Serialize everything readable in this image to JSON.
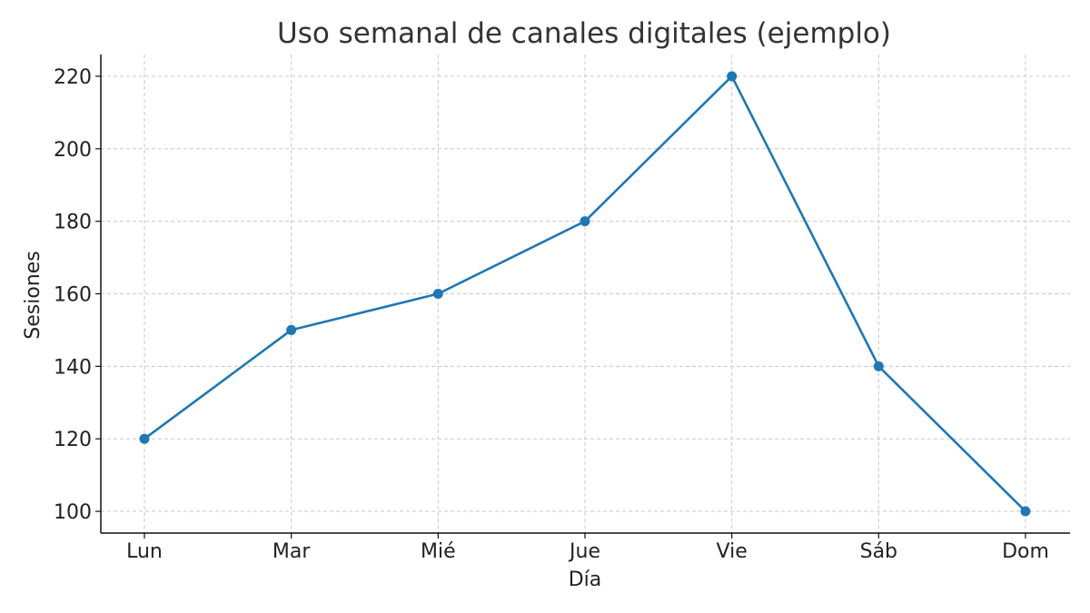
{
  "chart_data": {
    "type": "line",
    "title": "Uso semanal de canales digitales (ejemplo)",
    "xlabel": "Día",
    "ylabel": "Sesiones",
    "categories": [
      "Lun",
      "Mar",
      "Mié",
      "Jue",
      "Vie",
      "Sáb",
      "Dom"
    ],
    "series": [
      {
        "values": [
          120,
          150,
          160,
          180,
          220,
          140,
          100
        ]
      }
    ],
    "yticks": [
      100,
      120,
      140,
      160,
      180,
      200,
      220
    ],
    "ylim": [
      94,
      226
    ],
    "grid": true,
    "legend": "none",
    "color": "#1f77b4"
  }
}
